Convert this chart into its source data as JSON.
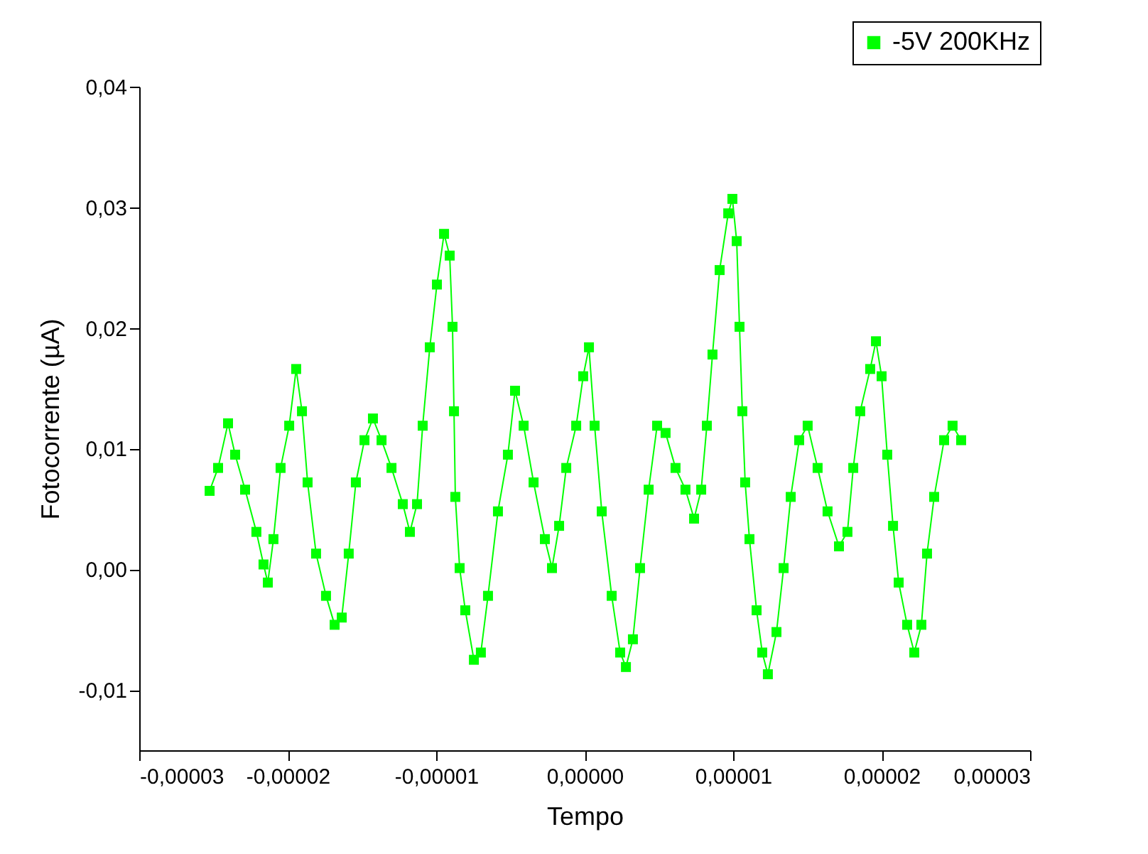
{
  "chart_data": {
    "type": "line",
    "xlabel": "Tempo",
    "ylabel": "Fotocorrente (µA)",
    "marker": "square",
    "line_style": "solid",
    "grid": false,
    "legend": "top right",
    "xlim": [
      -3e-05,
      3e-05
    ],
    "xticks": [
      {
        "value": -3e-05,
        "label": "-0,00003"
      },
      {
        "value": -2e-05,
        "label": "-0,00002"
      },
      {
        "value": -1e-05,
        "label": "-0,00001"
      },
      {
        "value": 0,
        "label": "0,00000"
      },
      {
        "value": 1e-05,
        "label": "0,00001"
      },
      {
        "value": 2e-05,
        "label": "0,00002"
      },
      {
        "value": 3e-05,
        "label": "0,00003"
      }
    ],
    "ylim": [
      -0.015,
      0.04
    ],
    "yticks": [
      {
        "value": -0.01,
        "label": "-0,01"
      },
      {
        "value": 0,
        "label": "0,00"
      },
      {
        "value": 0.01,
        "label": "0,01"
      },
      {
        "value": 0.02,
        "label": "0,02"
      },
      {
        "value": 0.03,
        "label": "0,03"
      },
      {
        "value": 0.04,
        "label": "0,04"
      }
    ],
    "series": [
      {
        "name": "-5V 200KHz",
        "color": "#00ff00",
        "x": [
          -2.526e-05,
          -2.469e-05,
          -2.402e-05,
          -2.354e-05,
          -2.287e-05,
          -2.211e-05,
          -2.163e-05,
          -2.134e-05,
          -2.096e-05,
          -2.048e-05,
          -1.99e-05,
          -1.943e-05,
          -1.904e-05,
          -1.866e-05,
          -1.809e-05,
          -1.742e-05,
          -1.684e-05,
          -1.636e-05,
          -1.589e-05,
          -1.541e-05,
          -1.483e-05,
          -1.426e-05,
          -1.368e-05,
          -1.301e-05,
          -1.225e-05,
          -1.177e-05,
          -1.129e-05,
          -1.091e-05,
          -1.043e-05,
          -9.95e-06,
          -9.47e-06,
          -9.09e-06,
          -8.9e-06,
          -8.8e-06,
          -8.71e-06,
          -8.42e-06,
          -8.04e-06,
          -7.46e-06,
          -6.99e-06,
          -6.51e-06,
          -5.84e-06,
          -5.17e-06,
          -4.69e-06,
          -4.11e-06,
          -3.44e-06,
          -2.68e-06,
          -2.2e-06,
          -1.72e-06,
          -1.24e-06,
          -5.7e-07,
          -1e-07,
          2.9e-07,
          6.7e-07,
          1.15e-06,
          1.82e-06,
          2.39e-06,
          2.78e-06,
          3.25e-06,
          3.73e-06,
          4.31e-06,
          4.88e-06,
          5.45e-06,
          6.12e-06,
          6.79e-06,
          7.37e-06,
          7.85e-06,
          8.23e-06,
          8.61e-06,
          9.09e-06,
          9.67e-06,
          9.95e-06,
          1.024e-05,
          1.043e-05,
          1.062e-05,
          1.081e-05,
          1.11e-05,
          1.158e-05,
          1.196e-05,
          1.234e-05,
          1.292e-05,
          1.34e-05,
          1.388e-05,
          1.445e-05,
          1.502e-05,
          1.569e-05,
          1.636e-05,
          1.713e-05,
          1.77e-05,
          1.809e-05,
          1.856e-05,
          1.923e-05,
          1.962e-05,
          2e-05,
          2.038e-05,
          2.077e-05,
          2.115e-05,
          2.172e-05,
          2.22e-05,
          2.268e-05,
          2.306e-05,
          2.354e-05,
          2.421e-05,
          2.478e-05,
          2.536e-05
        ],
        "values": [
          0.0065,
          0.0084,
          0.0121,
          0.0095,
          0.0066,
          0.0031,
          0.0004,
          -0.0011,
          0.0025,
          0.0084,
          0.0119,
          0.0166,
          0.0131,
          0.0072,
          0.0013,
          -0.0022,
          -0.0046,
          -0.004,
          0.0013,
          0.0072,
          0.0107,
          0.0125,
          0.0107,
          0.0084,
          0.0054,
          0.0031,
          0.0054,
          0.0119,
          0.0184,
          0.0236,
          0.0278,
          0.026,
          0.0201,
          0.0131,
          0.006,
          0.0001,
          -0.0034,
          -0.0075,
          -0.0069,
          -0.0022,
          0.0048,
          0.0095,
          0.0148,
          0.0119,
          0.0072,
          0.0025,
          0.0001,
          0.0036,
          0.0084,
          0.0119,
          0.016,
          0.0184,
          0.0119,
          0.0048,
          -0.0022,
          -0.0069,
          -0.0081,
          -0.0058,
          0.0001,
          0.0066,
          0.0119,
          0.0113,
          0.0084,
          0.0066,
          0.0042,
          0.0066,
          0.0119,
          0.0178,
          0.0248,
          0.0295,
          0.0307,
          0.0272,
          0.0201,
          0.0131,
          0.0072,
          0.0025,
          -0.0034,
          -0.0069,
          -0.0087,
          -0.0052,
          0.0001,
          0.006,
          0.0107,
          0.0119,
          0.0084,
          0.0048,
          0.0019,
          0.0031,
          0.0084,
          0.0131,
          0.0166,
          0.0189,
          0.016,
          0.0095,
          0.0036,
          -0.0011,
          -0.0046,
          -0.0069,
          -0.0046,
          0.0013,
          0.006,
          0.0107,
          0.0119,
          0.0107
        ]
      }
    ]
  }
}
